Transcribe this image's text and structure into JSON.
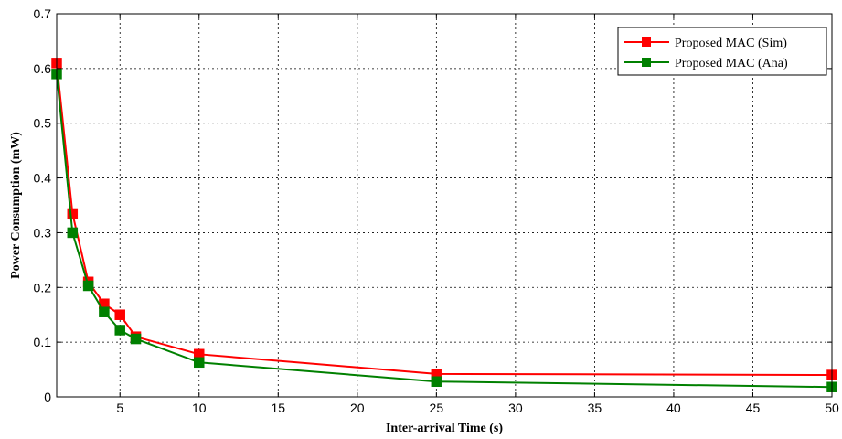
{
  "chart_data": {
    "type": "line",
    "title": "",
    "xlabel": "Inter-arrival Time (s)",
    "ylabel": "Power Consumption (mW)",
    "xlim": [
      1,
      50
    ],
    "ylim": [
      0,
      0.7
    ],
    "xticks": [
      5,
      10,
      15,
      20,
      25,
      30,
      35,
      40,
      45,
      50
    ],
    "xtick_labels": [
      "5",
      "10",
      "15",
      "20",
      "25",
      "30",
      "35",
      "40",
      "45",
      "50"
    ],
    "yticks": [
      0,
      0.1,
      0.2,
      0.3,
      0.4,
      0.5,
      0.6,
      0.7
    ],
    "ytick_labels": [
      "0",
      "0.1",
      "0.2",
      "0.3",
      "0.4",
      "0.5",
      "0.6",
      "0.7"
    ],
    "grid": true,
    "legend_position": "top-right",
    "series": [
      {
        "name": "Proposed MAC (Sim)",
        "color": "#ff0000",
        "marker": "square",
        "x": [
          1,
          2,
          3,
          4,
          5,
          6,
          10,
          25,
          50
        ],
        "y": [
          0.61,
          0.335,
          0.21,
          0.17,
          0.15,
          0.11,
          0.078,
          0.042,
          0.04
        ]
      },
      {
        "name": "Proposed MAC (Ana)",
        "color": "#008000",
        "marker": "square",
        "x": [
          1,
          2,
          3,
          4,
          5,
          6,
          10,
          25,
          50
        ],
        "y": [
          0.59,
          0.3,
          0.203,
          0.155,
          0.122,
          0.106,
          0.063,
          0.028,
          0.018
        ]
      }
    ]
  }
}
